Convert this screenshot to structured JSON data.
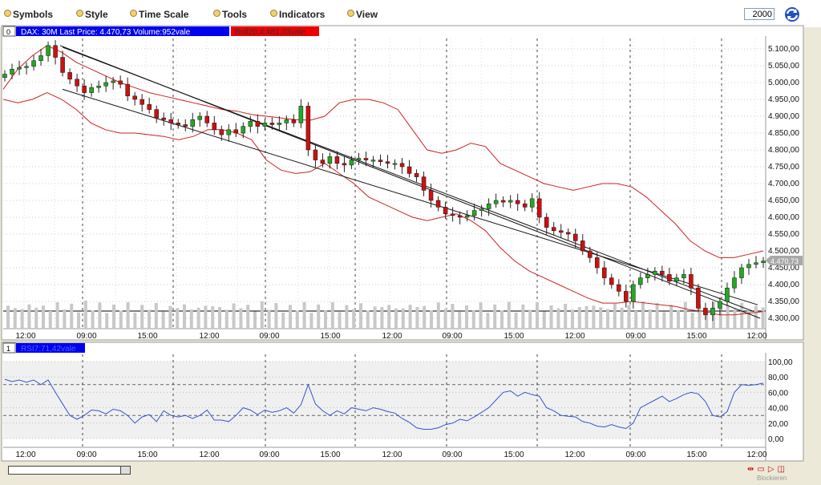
{
  "toolbar": {
    "menus": [
      "Symbols",
      "Style",
      "Time Scale",
      "Tools",
      "Indicators",
      "View"
    ],
    "bars_count": "2000",
    "refresh_icon": "refresh-icon"
  },
  "price_panel": {
    "index_label": "0",
    "legend_main": "DAX: 30M Last Price: 4.470,73 Volume:952vale",
    "legend_boll": "Boll20,4:481,03vale",
    "last_price_tag": "4.470,73",
    "y_ticks": [
      "5.100,00",
      "5.050,00",
      "5.000,00",
      "4.950,00",
      "4.900,00",
      "4.850,00",
      "4.800,00",
      "4.750,00",
      "4.700,00",
      "4.650,00",
      "4.600,00",
      "4.550,00",
      "4.500,00",
      "4.450,00",
      "4.400,00",
      "4.350,00",
      "4.300,00"
    ],
    "x_ticks": [
      "12:00",
      "09:00",
      "15:00",
      "12:00",
      "09:00",
      "15:00",
      "12:00",
      "09:00",
      "15:00",
      "12:00",
      "09:00",
      "15:00",
      "12:00"
    ]
  },
  "rsi_panel": {
    "index_label": "1",
    "legend": "RSI7:71,42vale",
    "y_ticks": [
      "100,00",
      "80,00",
      "60,00",
      "40,00",
      "20,00",
      "0,00"
    ],
    "x_ticks": [
      "12:00",
      "09:00",
      "15:00",
      "12:00",
      "09:00",
      "15:00",
      "12:00",
      "09:00",
      "15:00",
      "12:00",
      "09:00",
      "15:00",
      "12:00"
    ]
  },
  "footer": {
    "status": "Blockieren",
    "nav_icons": [
      "zoom-fit-icon",
      "zoom-out-icon",
      "zoom-in-icon",
      "reset-icon"
    ]
  },
  "colors": {
    "up_candle": "#22aa22",
    "down_candle": "#cc1111",
    "bollinger": "#cc2222",
    "channel": "#111111",
    "rsi": "#3355cc",
    "legend_main_bg": "#0000ee",
    "legend_boll_bg": "#ee0000"
  },
  "chart_data": [
    {
      "type": "candlestick",
      "series": [
        {
          "name": "DAX: 30M Last Price",
          "values": [
            5025,
            5040,
            5045,
            5048,
            5065,
            5080,
            5110,
            5075,
            5030,
            5010,
            4990,
            4970,
            4985,
            4990,
            5000,
            5005,
            4995,
            4960,
            4950,
            4935,
            4920,
            4895,
            4890,
            4880,
            4875,
            4870,
            4890,
            4900,
            4880,
            4860,
            4845,
            4860,
            4850,
            4870,
            4885,
            4870,
            4880,
            4875,
            4880,
            4890,
            4880,
            4930,
            4800,
            4770,
            4760,
            4780,
            4760,
            4755,
            4770,
            4775,
            4770,
            4770,
            4765,
            4760,
            4760,
            4750,
            4730,
            4720,
            4680,
            4650,
            4630,
            4610,
            4605,
            4600,
            4605,
            4620,
            4625,
            4640,
            4650,
            4645,
            4650,
            4640,
            4630,
            4655,
            4600,
            4570,
            4560,
            4555,
            4550,
            4530,
            4500,
            4480,
            4450,
            4420,
            4400,
            4380,
            4350,
            4400,
            4420,
            4430,
            4440,
            4430,
            4410,
            4420,
            4430,
            4390,
            4330,
            4310,
            4330,
            4350,
            4390,
            4420,
            4450,
            4460,
            4465,
            4470
          ]
        },
        {
          "name": "Boll20,4 upper",
          "values": [
            4980,
            5040,
            5080,
            5110,
            5090,
            5060,
            5040,
            5020,
            5000,
            4985,
            4970,
            4960,
            4950,
            4940,
            4930,
            4920,
            4915,
            4905,
            4900,
            4895,
            4890,
            4888,
            4900,
            4940,
            4950,
            4950,
            4940,
            4920,
            4860,
            4800,
            4790,
            4800,
            4820,
            4810,
            4760,
            4740,
            4720,
            4700,
            4690,
            4680,
            4690,
            4700,
            4700,
            4690,
            4660,
            4620,
            4580,
            4530,
            4500,
            4480,
            4480,
            4490,
            4500
          ]
        },
        {
          "name": "Boll20,4 lower",
          "values": [
            4950,
            4940,
            4950,
            4970,
            4950,
            4920,
            4880,
            4860,
            4850,
            4850,
            4845,
            4840,
            4830,
            4840,
            4860,
            4860,
            4850,
            4830,
            4770,
            4740,
            4730,
            4735,
            4760,
            4730,
            4700,
            4660,
            4640,
            4620,
            4600,
            4590,
            4600,
            4610,
            4590,
            4560,
            4510,
            4470,
            4440,
            4420,
            4400,
            4380,
            4360,
            4345,
            4345,
            4350,
            4345,
            4340,
            4335,
            4325,
            4320,
            4310,
            4310,
            4315,
            4320
          ]
        },
        {
          "name": "Channel",
          "values": [
            5110,
            4300,
            4880,
            5110,
            4340
          ]
        }
      ]
    },
    {
      "type": "line",
      "series": [
        {
          "name": "RSI7",
          "values": [
            77,
            74,
            76,
            73,
            76,
            70,
            76,
            60,
            45,
            30,
            25,
            30,
            37,
            36,
            32,
            38,
            36,
            30,
            20,
            28,
            31,
            22,
            36,
            30,
            28,
            30,
            26,
            30,
            37,
            24,
            24,
            22,
            30,
            40,
            37,
            31,
            37,
            34,
            36,
            40,
            33,
            44,
            70,
            45,
            36,
            30,
            36,
            32,
            40,
            38,
            36,
            40,
            38,
            35,
            33,
            26,
            21,
            14,
            12,
            12,
            14,
            18,
            20,
            25,
            23,
            28,
            34,
            40,
            50,
            60,
            62,
            55,
            60,
            57,
            55,
            40,
            36,
            30,
            29,
            28,
            22,
            20,
            16,
            15,
            18,
            15,
            13,
            20,
            40,
            45,
            50,
            55,
            48,
            52,
            57,
            60,
            58,
            48,
            30,
            28,
            35,
            60,
            70,
            69,
            70,
            72
          ]
        }
      ],
      "ylim": [
        0,
        100
      ]
    }
  ]
}
